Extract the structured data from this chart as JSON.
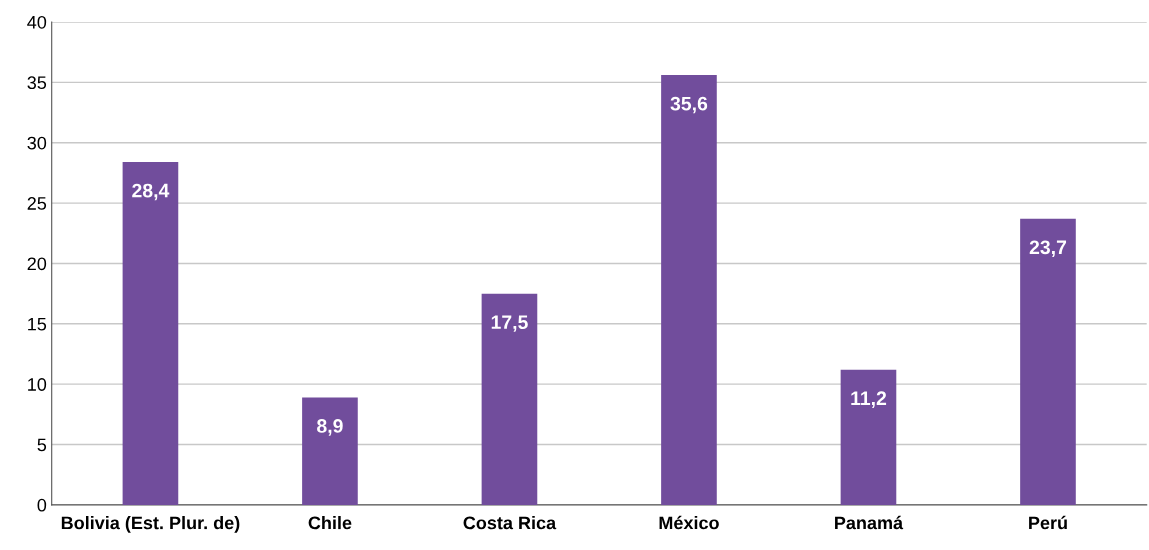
{
  "chart_data": {
    "type": "bar",
    "categories": [
      "Bolivia (Est. Plur. de)",
      "Chile",
      "Costa Rica",
      "México",
      "Panamá",
      "Perú"
    ],
    "values": [
      28.4,
      8.9,
      17.5,
      35.6,
      11.2,
      23.7
    ],
    "value_labels": [
      "28,4",
      "8,9",
      "17,5",
      "35,6",
      "11,2",
      "23,7"
    ],
    "color": "#714d9c",
    "ylim": [
      0,
      40
    ],
    "yticks": [
      0,
      5,
      10,
      15,
      20,
      25,
      30,
      35,
      40
    ],
    "grid": "y",
    "legend": false
  }
}
